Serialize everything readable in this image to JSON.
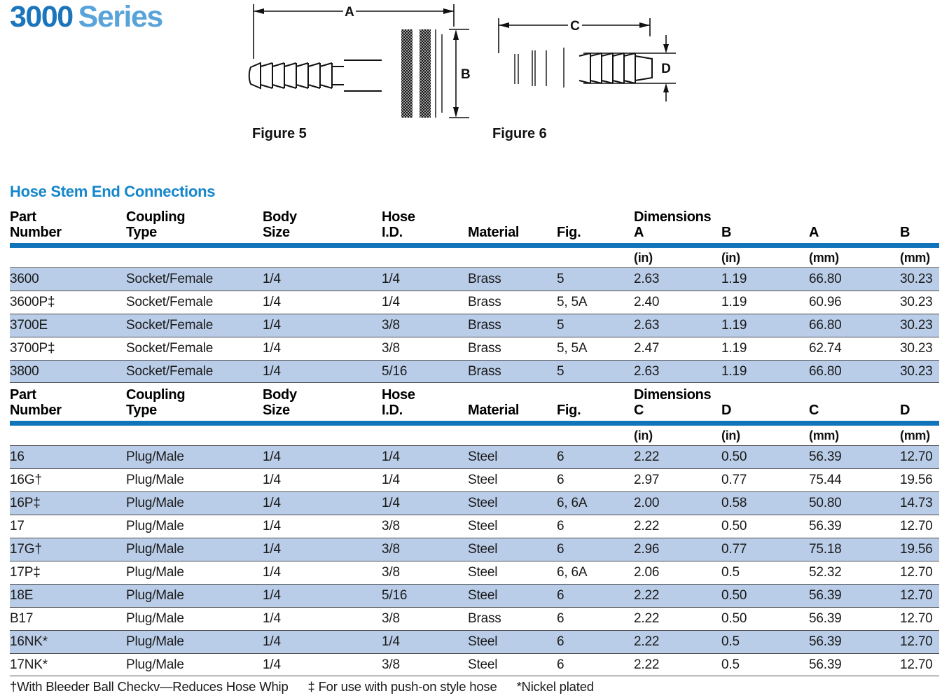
{
  "title": {
    "number": "3000",
    "word": "Series"
  },
  "section_title": "Hose Stem End Connections",
  "figures": [
    {
      "caption": "Figure 5",
      "dims": [
        "A",
        "B"
      ]
    },
    {
      "caption": "Figure 6",
      "dims": [
        "C",
        "D"
      ]
    }
  ],
  "footnotes": {
    "dagger": "†With Bleeder Ball Checkv—Reduces Hose Whip",
    "double_dagger": "‡ For use with push-on style hose",
    "asterisk": "*Nickel plated"
  },
  "colors": {
    "title_number_blue": "#1b75bc",
    "title_word_blue": "#58a3da",
    "section_heading_blue": "#1486ca",
    "header_rule_blue": "#1173b9",
    "row_shade_blue": "#bacde8"
  },
  "tables": [
    {
      "name": "socket-female-connections",
      "dimensions_label": "Dimensions",
      "columns": [
        {
          "line1": "Part",
          "line2": "Number"
        },
        {
          "line1": "Coupling",
          "line2": "Type"
        },
        {
          "line1": "Body",
          "line2": "Size"
        },
        {
          "line1": "Hose",
          "line2": "I.D."
        },
        {
          "line1": "",
          "line2": "Material"
        },
        {
          "line1": "",
          "line2": "Fig."
        },
        {
          "line1": "",
          "line2": "A",
          "unit": "(in)"
        },
        {
          "line1": "",
          "line2": "B",
          "unit": "(in)"
        },
        {
          "line1": "",
          "line2": "A",
          "unit": "(mm)"
        },
        {
          "line1": "",
          "line2": "B",
          "unit": "(mm)"
        }
      ],
      "rows": [
        [
          "3600",
          "Socket/Female",
          "1/4",
          "1/4",
          "Brass",
          "5",
          "2.63",
          "1.19",
          "66.80",
          "30.23"
        ],
        [
          "3600P‡",
          "Socket/Female",
          "1/4",
          "1/4",
          "Brass",
          "5, 5A",
          "2.40",
          "1.19",
          "60.96",
          "30.23"
        ],
        [
          "3700E",
          "Socket/Female",
          "1/4",
          "3/8",
          "Brass",
          "5",
          "2.63",
          "1.19",
          "66.80",
          "30.23"
        ],
        [
          "3700P‡",
          "Socket/Female",
          "1/4",
          "3/8",
          "Brass",
          "5, 5A",
          "2.47",
          "1.19",
          "62.74",
          "30.23"
        ],
        [
          "3800",
          "Socket/Female",
          "1/4",
          "5/16",
          "Brass",
          "5",
          "2.63",
          "1.19",
          "66.80",
          "30.23"
        ]
      ]
    },
    {
      "name": "plug-male-connections",
      "dimensions_label": "Dimensions",
      "columns": [
        {
          "line1": "Part",
          "line2": "Number"
        },
        {
          "line1": "Coupling",
          "line2": "Type"
        },
        {
          "line1": "Body",
          "line2": "Size"
        },
        {
          "line1": "Hose",
          "line2": "I.D."
        },
        {
          "line1": "",
          "line2": "Material"
        },
        {
          "line1": "",
          "line2": "Fig."
        },
        {
          "line1": "",
          "line2": "C",
          "unit": "(in)"
        },
        {
          "line1": "",
          "line2": "D",
          "unit": "(in)"
        },
        {
          "line1": "",
          "line2": "C",
          "unit": "(mm)"
        },
        {
          "line1": "",
          "line2": "D",
          "unit": "(mm)"
        }
      ],
      "rows": [
        [
          "16",
          "Plug/Male",
          "1/4",
          "1/4",
          "Steel",
          "6",
          "2.22",
          "0.50",
          "56.39",
          "12.70"
        ],
        [
          "16G†",
          "Plug/Male",
          "1/4",
          "1/4",
          "Steel",
          "6",
          "2.97",
          "0.77",
          "75.44",
          "19.56"
        ],
        [
          "16P‡",
          "Plug/Male",
          "1/4",
          "1/4",
          "Steel",
          "6, 6A",
          "2.00",
          "0.58",
          "50.80",
          "14.73"
        ],
        [
          "17",
          "Plug/Male",
          "1/4",
          "3/8",
          "Steel",
          "6",
          "2.22",
          "0.50",
          "56.39",
          "12.70"
        ],
        [
          "17G†",
          "Plug/Male",
          "1/4",
          "3/8",
          "Steel",
          "6",
          "2.96",
          "0.77",
          "75.18",
          "19.56"
        ],
        [
          "17P‡",
          "Plug/Male",
          "1/4",
          "3/8",
          "Steel",
          "6, 6A",
          "2.06",
          "0.5",
          "52.32",
          "12.70"
        ],
        [
          "18E",
          "Plug/Male",
          "1/4",
          "5/16",
          "Steel",
          "6",
          "2.22",
          "0.50",
          "56.39",
          "12.70"
        ],
        [
          "B17",
          "Plug/Male",
          "1/4",
          "3/8",
          "Brass",
          "6",
          "2.22",
          "0.50",
          "56.39",
          "12.70"
        ],
        [
          "16NK*",
          "Plug/Male",
          "1/4",
          "1/4",
          "Steel",
          "6",
          "2.22",
          "0.5",
          "56.39",
          "12.70"
        ],
        [
          "17NK*",
          "Plug/Male",
          "1/4",
          "3/8",
          "Steel",
          "6",
          "2.22",
          "0.5",
          "56.39",
          "12.70"
        ]
      ]
    }
  ]
}
